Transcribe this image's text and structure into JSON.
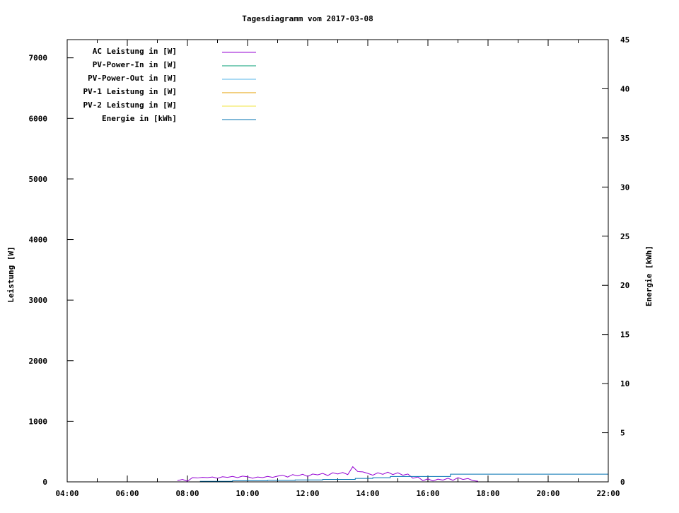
{
  "chart_data": {
    "type": "line",
    "title": "Tagesdiagramm vom 2017-03-08",
    "xlabel": "",
    "ylabel": "Leistung [W]",
    "y2label": "Energie [kWh]",
    "xlim": [
      "04:00",
      "22:00"
    ],
    "ylim": [
      0,
      7300
    ],
    "y2lim": [
      0,
      45
    ],
    "x_ticks": [
      "04:00",
      "06:00",
      "08:00",
      "10:00",
      "12:00",
      "14:00",
      "16:00",
      "18:00",
      "20:00",
      "22:00"
    ],
    "y_ticks": [
      "0",
      "1000",
      "2000",
      "3000",
      "4000",
      "5000",
      "6000",
      "7000"
    ],
    "y2_ticks": [
      "0",
      "5",
      "10",
      "15",
      "20",
      "25",
      "30",
      "35",
      "40",
      "45"
    ],
    "grid": false,
    "legend_position": "top-left",
    "series": [
      {
        "name": "AC Leistung in [W]",
        "color": "#9400d3",
        "axis": "y",
        "points": [
          [
            "07:40",
            20
          ],
          [
            "07:50",
            40
          ],
          [
            "08:00",
            10
          ],
          [
            "08:10",
            70
          ],
          [
            "08:20",
            65
          ],
          [
            "08:30",
            75
          ],
          [
            "08:40",
            70
          ],
          [
            "08:50",
            80
          ],
          [
            "09:00",
            60
          ],
          [
            "09:10",
            85
          ],
          [
            "09:20",
            75
          ],
          [
            "09:30",
            90
          ],
          [
            "09:40",
            70
          ],
          [
            "09:50",
            95
          ],
          [
            "10:00",
            85
          ],
          [
            "10:10",
            60
          ],
          [
            "10:20",
            80
          ],
          [
            "10:30",
            70
          ],
          [
            "10:40",
            90
          ],
          [
            "10:50",
            75
          ],
          [
            "11:00",
            95
          ],
          [
            "11:10",
            110
          ],
          [
            "11:20",
            80
          ],
          [
            "11:30",
            120
          ],
          [
            "11:40",
            100
          ],
          [
            "11:50",
            125
          ],
          [
            "12:00",
            90
          ],
          [
            "12:10",
            130
          ],
          [
            "12:20",
            115
          ],
          [
            "12:30",
            140
          ],
          [
            "12:40",
            105
          ],
          [
            "12:50",
            150
          ],
          [
            "13:00",
            130
          ],
          [
            "13:10",
            155
          ],
          [
            "13:20",
            120
          ],
          [
            "13:30",
            250
          ],
          [
            "13:40",
            170
          ],
          [
            "13:50",
            165
          ],
          [
            "14:00",
            140
          ],
          [
            "14:10",
            110
          ],
          [
            "14:20",
            150
          ],
          [
            "14:30",
            125
          ],
          [
            "14:40",
            160
          ],
          [
            "14:50",
            120
          ],
          [
            "15:00",
            150
          ],
          [
            "15:10",
            110
          ],
          [
            "15:20",
            130
          ],
          [
            "15:30",
            60
          ],
          [
            "15:40",
            80
          ],
          [
            "15:50",
            20
          ],
          [
            "16:00",
            50
          ],
          [
            "16:10",
            15
          ],
          [
            "16:20",
            45
          ],
          [
            "16:30",
            30
          ],
          [
            "16:40",
            60
          ],
          [
            "16:50",
            25
          ],
          [
            "17:00",
            70
          ],
          [
            "17:10",
            40
          ],
          [
            "17:20",
            55
          ],
          [
            "17:30",
            20
          ],
          [
            "17:40",
            10
          ]
        ]
      },
      {
        "name": "PV-Power-In in [W]",
        "color": "#009e73",
        "axis": "y",
        "points": []
      },
      {
        "name": "PV-Power-Out in [W]",
        "color": "#56b4e9",
        "axis": "y",
        "points": []
      },
      {
        "name": "PV-1 Leistung in [W]",
        "color": "#e69f00",
        "axis": "y",
        "points": []
      },
      {
        "name": "PV-2 Leistung in [W]",
        "color": "#f0e442",
        "axis": "y",
        "points": []
      },
      {
        "name": "Energie in [kWh]",
        "color": "#0072b2",
        "axis": "y2",
        "step": true,
        "points": [
          [
            "08:25",
            0.05
          ],
          [
            "09:30",
            0.12
          ],
          [
            "10:40",
            0.15
          ],
          [
            "11:35",
            0.2
          ],
          [
            "12:30",
            0.25
          ],
          [
            "13:35",
            0.35
          ],
          [
            "14:10",
            0.42
          ],
          [
            "14:45",
            0.55
          ],
          [
            "16:45",
            0.78
          ],
          [
            "22:00",
            0.78
          ]
        ]
      }
    ]
  }
}
